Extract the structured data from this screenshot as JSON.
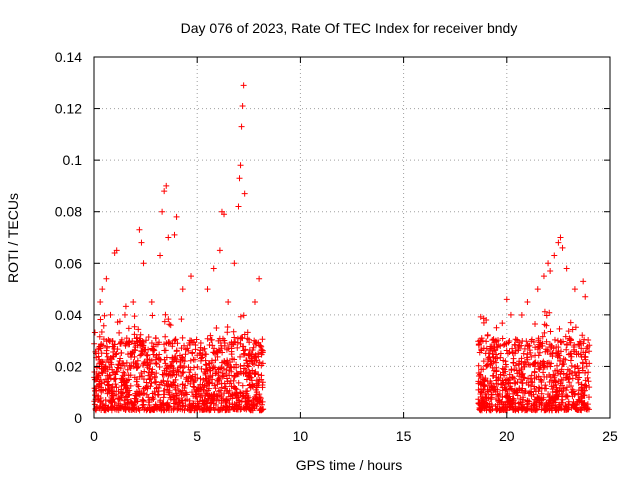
{
  "chart_data": {
    "type": "scatter",
    "title": "Day 076 of 2023, Rate Of TEC Index for receiver bndy",
    "xlabel": "GPS time / hours",
    "ylabel": "ROTI / TECUs",
    "xlim": [
      0,
      25
    ],
    "ylim": [
      0,
      0.14
    ],
    "x_ticks": [
      0,
      5,
      10,
      15,
      20,
      25
    ],
    "y_ticks": [
      0,
      0.02,
      0.04,
      0.06,
      0.08,
      0.1,
      0.12,
      0.14
    ],
    "grid": true,
    "marker": "+",
    "color": "#ff0000",
    "series": [
      {
        "name": "ROTI",
        "segments": [
          {
            "x_start": 0.0,
            "x_end": 8.2
          },
          {
            "x_start": 18.6,
            "x_end": 24.0
          }
        ],
        "points": [
          {
            "x": 0.1,
            "y": 0.025
          },
          {
            "x": 0.3,
            "y": 0.045
          },
          {
            "x": 0.4,
            "y": 0.05
          },
          {
            "x": 0.6,
            "y": 0.054
          },
          {
            "x": 0.8,
            "y": 0.04
          },
          {
            "x": 1.0,
            "y": 0.064
          },
          {
            "x": 1.1,
            "y": 0.065
          },
          {
            "x": 1.5,
            "y": 0.04
          },
          {
            "x": 1.9,
            "y": 0.045
          },
          {
            "x": 2.2,
            "y": 0.073
          },
          {
            "x": 2.3,
            "y": 0.068
          },
          {
            "x": 2.4,
            "y": 0.06
          },
          {
            "x": 2.8,
            "y": 0.045
          },
          {
            "x": 3.2,
            "y": 0.063
          },
          {
            "x": 3.3,
            "y": 0.08
          },
          {
            "x": 3.4,
            "y": 0.088
          },
          {
            "x": 3.5,
            "y": 0.09
          },
          {
            "x": 3.6,
            "y": 0.07
          },
          {
            "x": 3.9,
            "y": 0.071
          },
          {
            "x": 4.0,
            "y": 0.078
          },
          {
            "x": 4.3,
            "y": 0.05
          },
          {
            "x": 4.7,
            "y": 0.055
          },
          {
            "x": 5.5,
            "y": 0.05
          },
          {
            "x": 5.8,
            "y": 0.058
          },
          {
            "x": 6.1,
            "y": 0.065
          },
          {
            "x": 6.2,
            "y": 0.08
          },
          {
            "x": 6.3,
            "y": 0.079
          },
          {
            "x": 6.5,
            "y": 0.045
          },
          {
            "x": 6.8,
            "y": 0.06
          },
          {
            "x": 7.0,
            "y": 0.082
          },
          {
            "x": 7.05,
            "y": 0.093
          },
          {
            "x": 7.1,
            "y": 0.098
          },
          {
            "x": 7.15,
            "y": 0.113
          },
          {
            "x": 7.2,
            "y": 0.121
          },
          {
            "x": 7.25,
            "y": 0.129
          },
          {
            "x": 7.3,
            "y": 0.087
          },
          {
            "x": 7.8,
            "y": 0.045
          },
          {
            "x": 8.0,
            "y": 0.054
          },
          {
            "x": 18.7,
            "y": 0.03
          },
          {
            "x": 19.0,
            "y": 0.038
          },
          {
            "x": 19.5,
            "y": 0.035
          },
          {
            "x": 20.0,
            "y": 0.046
          },
          {
            "x": 20.2,
            "y": 0.04
          },
          {
            "x": 21.0,
            "y": 0.045
          },
          {
            "x": 21.5,
            "y": 0.05
          },
          {
            "x": 21.8,
            "y": 0.055
          },
          {
            "x": 22.0,
            "y": 0.06
          },
          {
            "x": 22.1,
            "y": 0.057
          },
          {
            "x": 22.3,
            "y": 0.063
          },
          {
            "x": 22.5,
            "y": 0.068
          },
          {
            "x": 22.6,
            "y": 0.07
          },
          {
            "x": 22.7,
            "y": 0.066
          },
          {
            "x": 22.9,
            "y": 0.058
          },
          {
            "x": 23.3,
            "y": 0.05
          },
          {
            "x": 23.7,
            "y": 0.053
          },
          {
            "x": 23.8,
            "y": 0.047
          }
        ]
      }
    ]
  }
}
